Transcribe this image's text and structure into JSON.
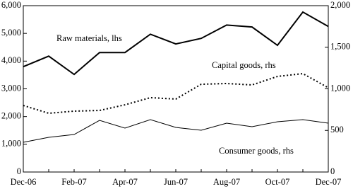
{
  "chart_data": {
    "type": "line",
    "categories": [
      "Dec-06",
      null,
      "Feb-07",
      null,
      "Apr-07",
      null,
      "Jun-07",
      null,
      "Aug-07",
      null,
      "Oct-07",
      null,
      "Dec-07"
    ],
    "series": [
      {
        "name": "Raw materials, lhs",
        "color": "#000000",
        "style": "solid",
        "width": 2,
        "values": [
          3800,
          4180,
          3520,
          4310,
          4310,
          4970,
          4620,
          4820,
          5300,
          5230,
          4570,
          5770,
          5250
        ]
      },
      {
        "name": "Capital goods, rhs",
        "color": "#000000",
        "style": "dotted",
        "width": 2,
        "axis": "y2",
        "values": [
          800,
          706,
          732,
          740,
          808,
          894,
          877,
          1055,
          1064,
          1047,
          1149,
          1183,
          1013
        ]
      },
      {
        "name": "Consumer goods, rhs",
        "color": "#000000",
        "style": "solid",
        "width": 1,
        "axis": "y2",
        "values": [
          357,
          417,
          451,
          621,
          528,
          630,
          536,
          502,
          587,
          545,
          604,
          630,
          587
        ]
      }
    ],
    "ylim": [
      0,
      6000
    ],
    "yticks": [
      0,
      {
        "value": 1000,
        "label": "1,000"
      },
      {
        "value": 2000,
        "label": "2,000"
      },
      {
        "value": 3000,
        "label": "3,000"
      },
      {
        "value": 4000,
        "label": "4,000"
      },
      {
        "value": 5000,
        "label": "5,000"
      },
      {
        "value": 6000,
        "label": "6,000"
      }
    ],
    "y2lim": [
      0,
      2000
    ],
    "y2ticks": [
      0,
      500,
      {
        "value": 1000,
        "label": "1,000"
      },
      {
        "value": 1500,
        "label": "1,500"
      },
      {
        "value": 2000,
        "label": "2,000"
      }
    ],
    "grid": false
  }
}
